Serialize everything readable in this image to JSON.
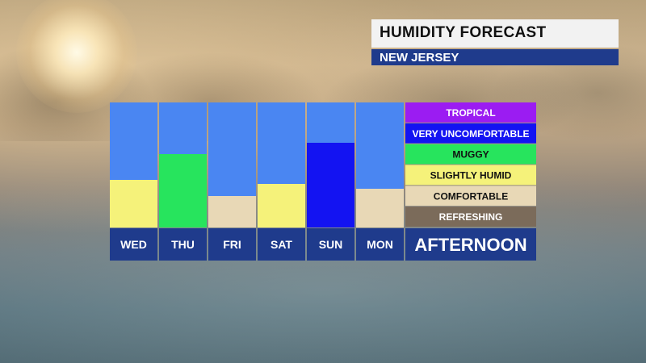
{
  "header": {
    "title": "HUMIDITY FORECAST",
    "subtitle": "NEW JERSEY"
  },
  "colors": {
    "column_background": "#4a86f2",
    "label_background": "#1f3b8c",
    "title_background": "#f2f2f2"
  },
  "chart_data": {
    "type": "bar",
    "categories": [
      "WED",
      "THU",
      "FRI",
      "SAT",
      "SUN",
      "MON"
    ],
    "panel_label": "AFTERNOON",
    "levels": [
      {
        "name": "TROPICAL",
        "color": "#9b1cf2",
        "text_color": "#ffffff"
      },
      {
        "name": "VERY UNCOMFORTABLE",
        "color": "#1313f2",
        "text_color": "#ffffff"
      },
      {
        "name": "MUGGY",
        "color": "#27e45d",
        "text_color": "#111111"
      },
      {
        "name": "SLIGHTLY HUMID",
        "color": "#f5f27a",
        "text_color": "#111111"
      },
      {
        "name": "COMFORTABLE",
        "color": "#e8d8b6",
        "text_color": "#111111"
      },
      {
        "name": "REFRESHING",
        "color": "#7b6b5a",
        "text_color": "#ffffff"
      }
    ],
    "values": [
      {
        "day": "WED",
        "level": "SLIGHTLY HUMID",
        "fraction": 0.38
      },
      {
        "day": "THU",
        "level": "MUGGY",
        "fraction": 0.59
      },
      {
        "day": "FRI",
        "level": "COMFORTABLE",
        "fraction": 0.25
      },
      {
        "day": "SAT",
        "level": "SLIGHTLY HUMID",
        "fraction": 0.35
      },
      {
        "day": "SUN",
        "level": "VERY UNCOMFORTABLE",
        "fraction": 0.68
      },
      {
        "day": "MON",
        "level": "COMFORTABLE",
        "fraction": 0.31
      }
    ]
  }
}
